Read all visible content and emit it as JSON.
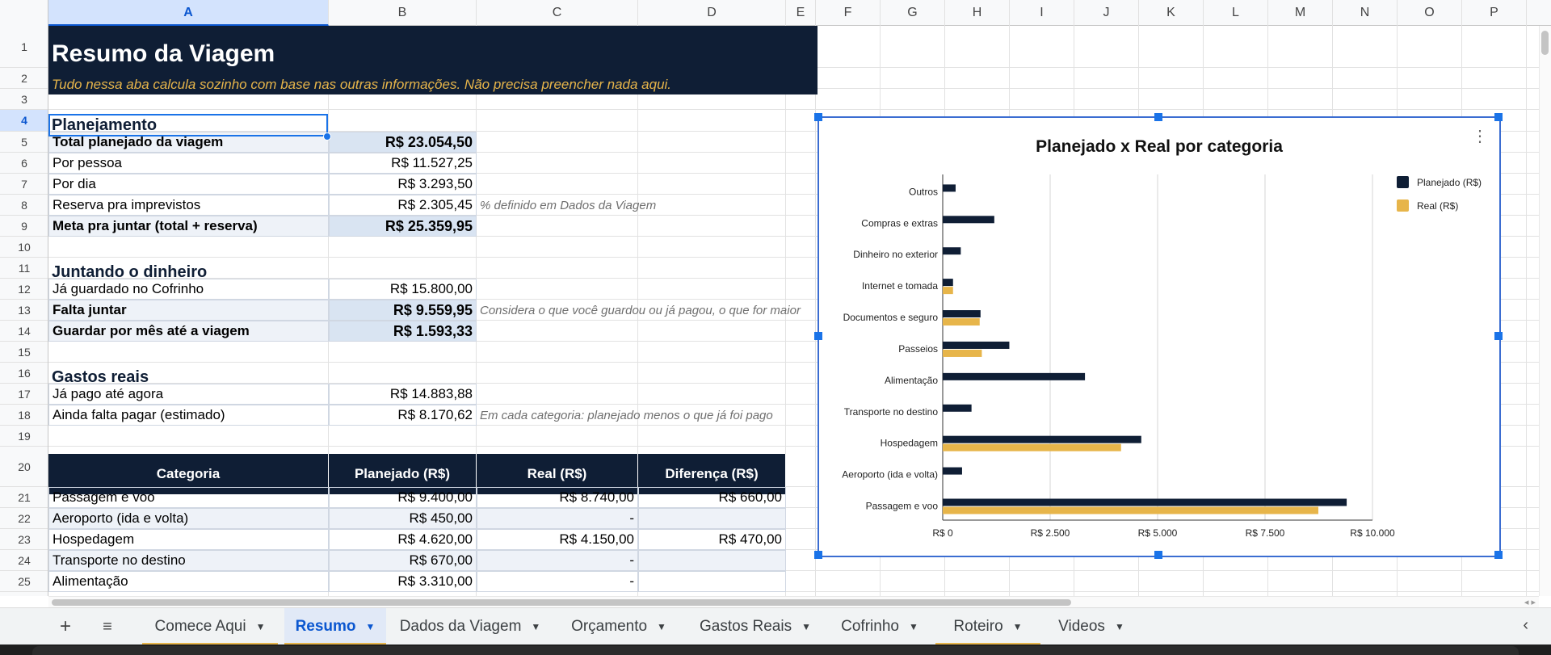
{
  "columns": [
    "A",
    "B",
    "C",
    "D",
    "E",
    "F",
    "G",
    "H",
    "I",
    "J",
    "K",
    "L",
    "M",
    "N",
    "O",
    "P"
  ],
  "selected_column": "A",
  "rows": [
    "1",
    "2",
    "3",
    "4",
    "5",
    "6",
    "7",
    "8",
    "9",
    "10",
    "11",
    "12",
    "13",
    "14",
    "15",
    "16",
    "17",
    "18",
    "19",
    "20",
    "21",
    "22",
    "23",
    "24",
    "25"
  ],
  "selected_row": "4",
  "header": {
    "title": "Resumo da Viagem",
    "subtitle": "Tudo nessa aba calcula sozinho com base nas outras informações. Não precisa preencher nada aqui."
  },
  "sections": {
    "planejamento": "Planejamento",
    "juntando": "Juntando o dinheiro",
    "gastos": "Gastos reais"
  },
  "planejamento_rows": [
    {
      "label": "Total planejado da viagem",
      "value": "R$ 23.054,50",
      "bold": true,
      "note": ""
    },
    {
      "label": "Por pessoa",
      "value": "R$ 11.527,25",
      "bold": false,
      "note": ""
    },
    {
      "label": "Por dia",
      "value": "R$ 3.293,50",
      "bold": false,
      "note": ""
    },
    {
      "label": "Reserva pra imprevistos",
      "value": "R$ 2.305,45",
      "bold": false,
      "note": "% definido em Dados da Viagem"
    },
    {
      "label": "Meta pra juntar (total + reserva)",
      "value": "R$ 25.359,95",
      "bold": true,
      "note": ""
    }
  ],
  "juntando_rows": [
    {
      "label": "Já guardado no Cofrinho",
      "value": "R$ 15.800,00",
      "bold": false,
      "note": ""
    },
    {
      "label": "Falta juntar",
      "value": "R$ 9.559,95",
      "bold": true,
      "note": "Considera o que você guardou ou já pagou, o que for maior"
    },
    {
      "label": "Guardar por mês até a viagem",
      "value": "R$ 1.593,33",
      "bold": true,
      "note": ""
    }
  ],
  "gastos_rows": [
    {
      "label": "Já pago até agora",
      "value": "R$ 14.883,88",
      "note": ""
    },
    {
      "label": "Ainda falta pagar (estimado)",
      "value": "R$ 8.170,62",
      "note": "Em cada categoria: planejado menos o que já foi pago"
    }
  ],
  "table": {
    "headers": [
      "Categoria",
      "Planejado (R$)",
      "Real (R$)",
      "Diferença (R$)"
    ],
    "rows": [
      [
        "Passagem e voo",
        "R$ 9.400,00",
        "R$ 8.740,00",
        "R$ 660,00"
      ],
      [
        "Aeroporto (ida e volta)",
        "R$ 450,00",
        "-",
        ""
      ],
      [
        "Hospedagem",
        "R$ 4.620,00",
        "R$ 4.150,00",
        "R$ 470,00"
      ],
      [
        "Transporte no destino",
        "R$ 670,00",
        "-",
        ""
      ],
      [
        "Alimentação",
        "R$ 3.310,00",
        "-",
        ""
      ]
    ]
  },
  "chart_data": {
    "type": "bar",
    "orientation": "horizontal",
    "title": "Planejado x Real por categoria",
    "categories": [
      "Outros",
      "Compras e extras",
      "Dinheiro no exterior",
      "Internet e tomada",
      "Documentos e seguro",
      "Passeios",
      "Alimentação",
      "Transporte no destino",
      "Hospedagem",
      "Aeroporto (ida e volta)",
      "Passagem e voo"
    ],
    "series": [
      {
        "name": "Planejado (R$)",
        "color": "#0f1e35",
        "values": [
          300,
          1200,
          420,
          240,
          880,
          1550,
          3310,
          670,
          4620,
          450,
          9400
        ]
      },
      {
        "name": "Real (R$)",
        "color": "#e7b54a",
        "values": [
          0,
          0,
          0,
          240,
          860,
          910,
          0,
          0,
          4150,
          0,
          8740
        ]
      }
    ],
    "xlim": [
      0,
      10000
    ],
    "xticks": [
      0,
      2500,
      5000,
      7500,
      10000
    ],
    "xtick_labels": [
      "R$ 0",
      "R$ 2.500",
      "R$ 5.000",
      "R$ 7.500",
      "R$ 10.000"
    ],
    "grid": true,
    "legend": "right"
  },
  "tabs": [
    {
      "label": "Comece Aqui",
      "active": false,
      "color": "#e7b54a"
    },
    {
      "label": "Resumo",
      "active": true,
      "color": "#e7b54a"
    },
    {
      "label": "Dados da Viagem",
      "active": false,
      "color": ""
    },
    {
      "label": "Orçamento",
      "active": false,
      "color": ""
    },
    {
      "label": "Gastos Reais",
      "active": false,
      "color": ""
    },
    {
      "label": "Cofrinho",
      "active": false,
      "color": ""
    },
    {
      "label": "Roteiro",
      "active": false,
      "color": "#e7b54a"
    },
    {
      "label": "Videos",
      "active": false,
      "color": ""
    }
  ],
  "icons": {
    "add_sheet": "plus-icon",
    "all_sheets": "menu-icon",
    "chart_menu": "kebab-icon",
    "scroll_left": "chevron-left-icon"
  }
}
